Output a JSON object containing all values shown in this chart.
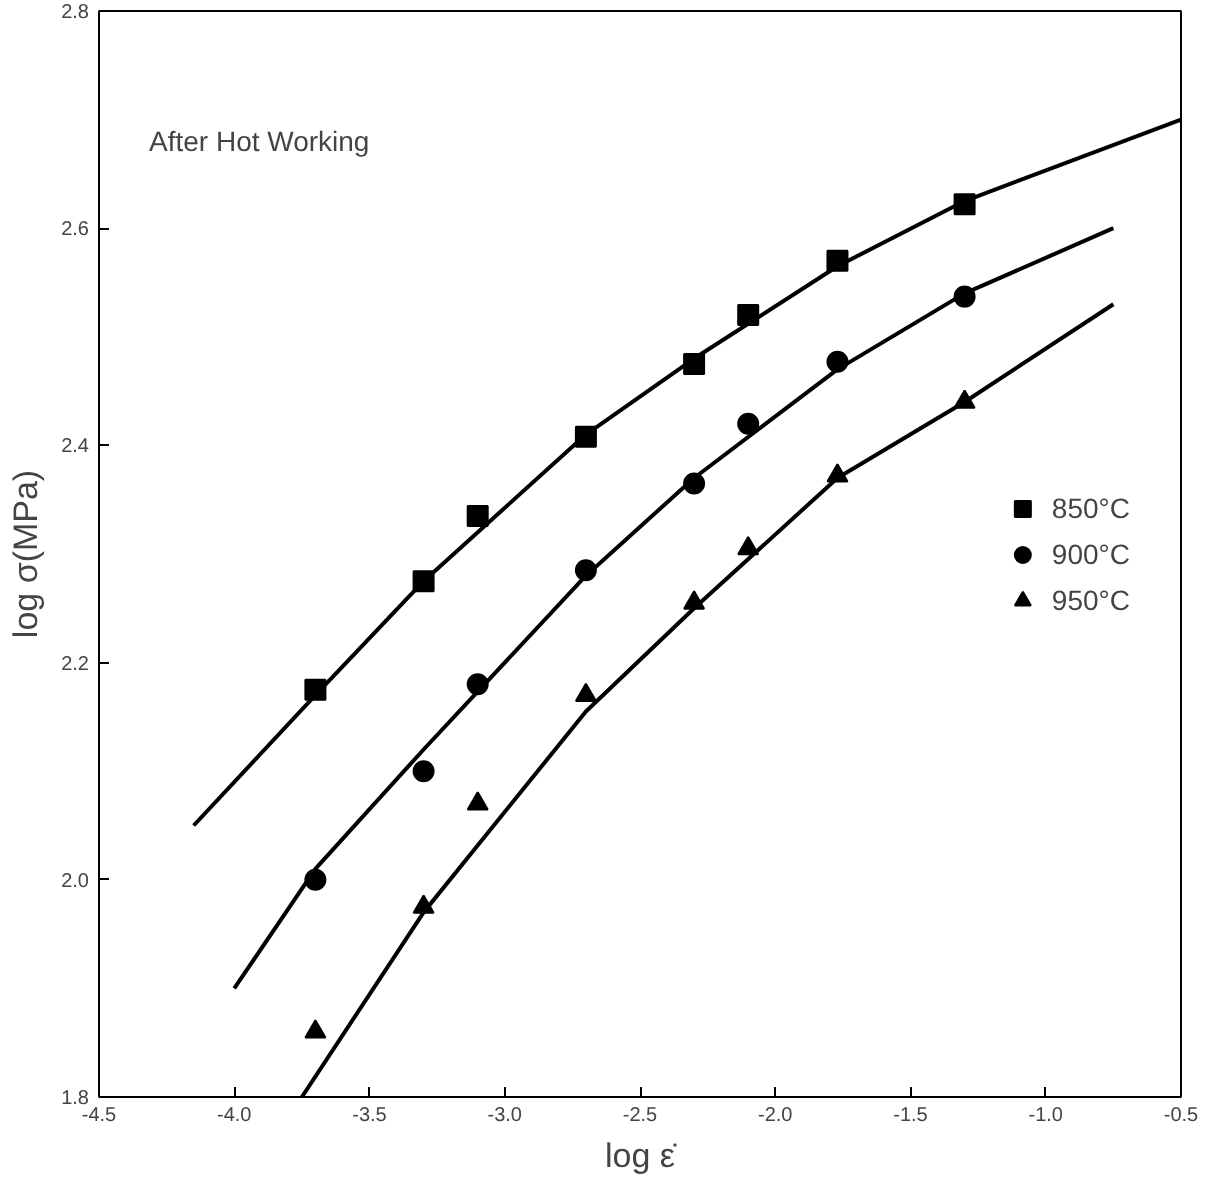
{
  "chart_data": {
    "type": "scatter",
    "xlabel": "log ε̇",
    "ylabel": "log σ(MPa)",
    "annotations": [
      "After Hot Working"
    ],
    "xlim": [
      -4.5,
      -0.5
    ],
    "ylim": [
      1.8,
      2.8
    ],
    "xticks": [
      -4.5,
      {
        "value": -4,
        "label": "-4.0"
      },
      -3.5,
      {
        "value": -3,
        "label": "-3.0"
      },
      -2.5,
      {
        "value": -2,
        "label": "-2.0"
      },
      -1.5,
      {
        "value": -1,
        "label": "-1.0"
      },
      -0.5
    ],
    "yticks": [
      1.8,
      {
        "value": 2,
        "label": "2.0"
      },
      2.2,
      2.4,
      2.6,
      2.8
    ],
    "grid": false,
    "legend": "right",
    "series": [
      {
        "name": "850°C",
        "color": "#000000",
        "marker": "square",
        "x": [
          -3.7,
          -3.3,
          -3.1,
          -2.7,
          -2.3,
          -2.1,
          -1.77,
          -1.3
        ],
        "values": [
          2.175,
          2.275,
          2.335,
          2.408,
          2.475,
          2.52,
          2.57,
          2.622
        ]
      },
      {
        "name": "900°C",
        "color": "#000000",
        "marker": "circle",
        "x": [
          -3.7,
          -3.3,
          -3.1,
          -2.7,
          -2.3,
          -2.1,
          -1.77,
          -1.3
        ],
        "values": [
          2.0,
          2.1,
          2.18,
          2.285,
          2.365,
          2.42,
          2.477,
          2.537
        ]
      },
      {
        "name": "950°C",
        "color": "#000000",
        "marker": "triangle",
        "x": [
          -3.7,
          -3.3,
          -3.1,
          -2.7,
          -2.3,
          -2.1,
          -1.77,
          -1.3
        ],
        "values": [
          1.86,
          1.975,
          2.07,
          2.17,
          2.255,
          2.305,
          2.372,
          2.44
        ]
      },
      {
        "type": "line",
        "color": "#000000",
        "x": [
          -4.15,
          -3.7,
          -3.3,
          -2.7,
          -2.3,
          -1.77,
          -1.3,
          -0.5
        ],
        "values": [
          2.05,
          2.17,
          2.275,
          2.41,
          2.48,
          2.565,
          2.625,
          2.7
        ]
      },
      {
        "type": "line",
        "color": "#000000",
        "x": [
          -4.0,
          -3.7,
          -3.3,
          -2.7,
          -2.3,
          -1.77,
          -1.3,
          -0.75
        ],
        "values": [
          1.9,
          2.01,
          2.12,
          2.28,
          2.37,
          2.47,
          2.54,
          2.6
        ]
      },
      {
        "type": "line",
        "color": "#000000",
        "x": [
          -3.75,
          -3.3,
          -2.7,
          -2.3,
          -1.77,
          -1.3,
          -0.75
        ],
        "values": [
          1.8,
          1.97,
          2.155,
          2.25,
          2.37,
          2.44,
          2.53
        ]
      }
    ]
  }
}
